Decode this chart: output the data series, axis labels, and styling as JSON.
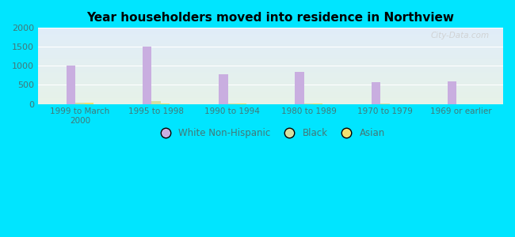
{
  "title": "Year householders moved into residence in Northview",
  "categories": [
    "1999 to March\n2000",
    "1995 to 1998",
    "1990 to 1994",
    "1980 to 1989",
    "1970 to 1979",
    "1969 or earlier"
  ],
  "white_non_hispanic": [
    1000,
    1500,
    775,
    850,
    575,
    585
  ],
  "black": [
    30,
    75,
    15,
    15,
    10,
    0
  ],
  "asian": [
    25,
    10,
    10,
    10,
    0,
    0
  ],
  "white_color": "#c9aee0",
  "black_color": "#d4dea0",
  "asian_color": "#f0e070",
  "background_outer": "#00e5ff",
  "background_inner_top": "#e6f2e8",
  "background_inner_bottom": "#e0ecf8",
  "ylim": [
    0,
    2000
  ],
  "yticks": [
    0,
    500,
    1000,
    1500,
    2000
  ],
  "bar_width": 0.12,
  "watermark": "City-Data.com"
}
